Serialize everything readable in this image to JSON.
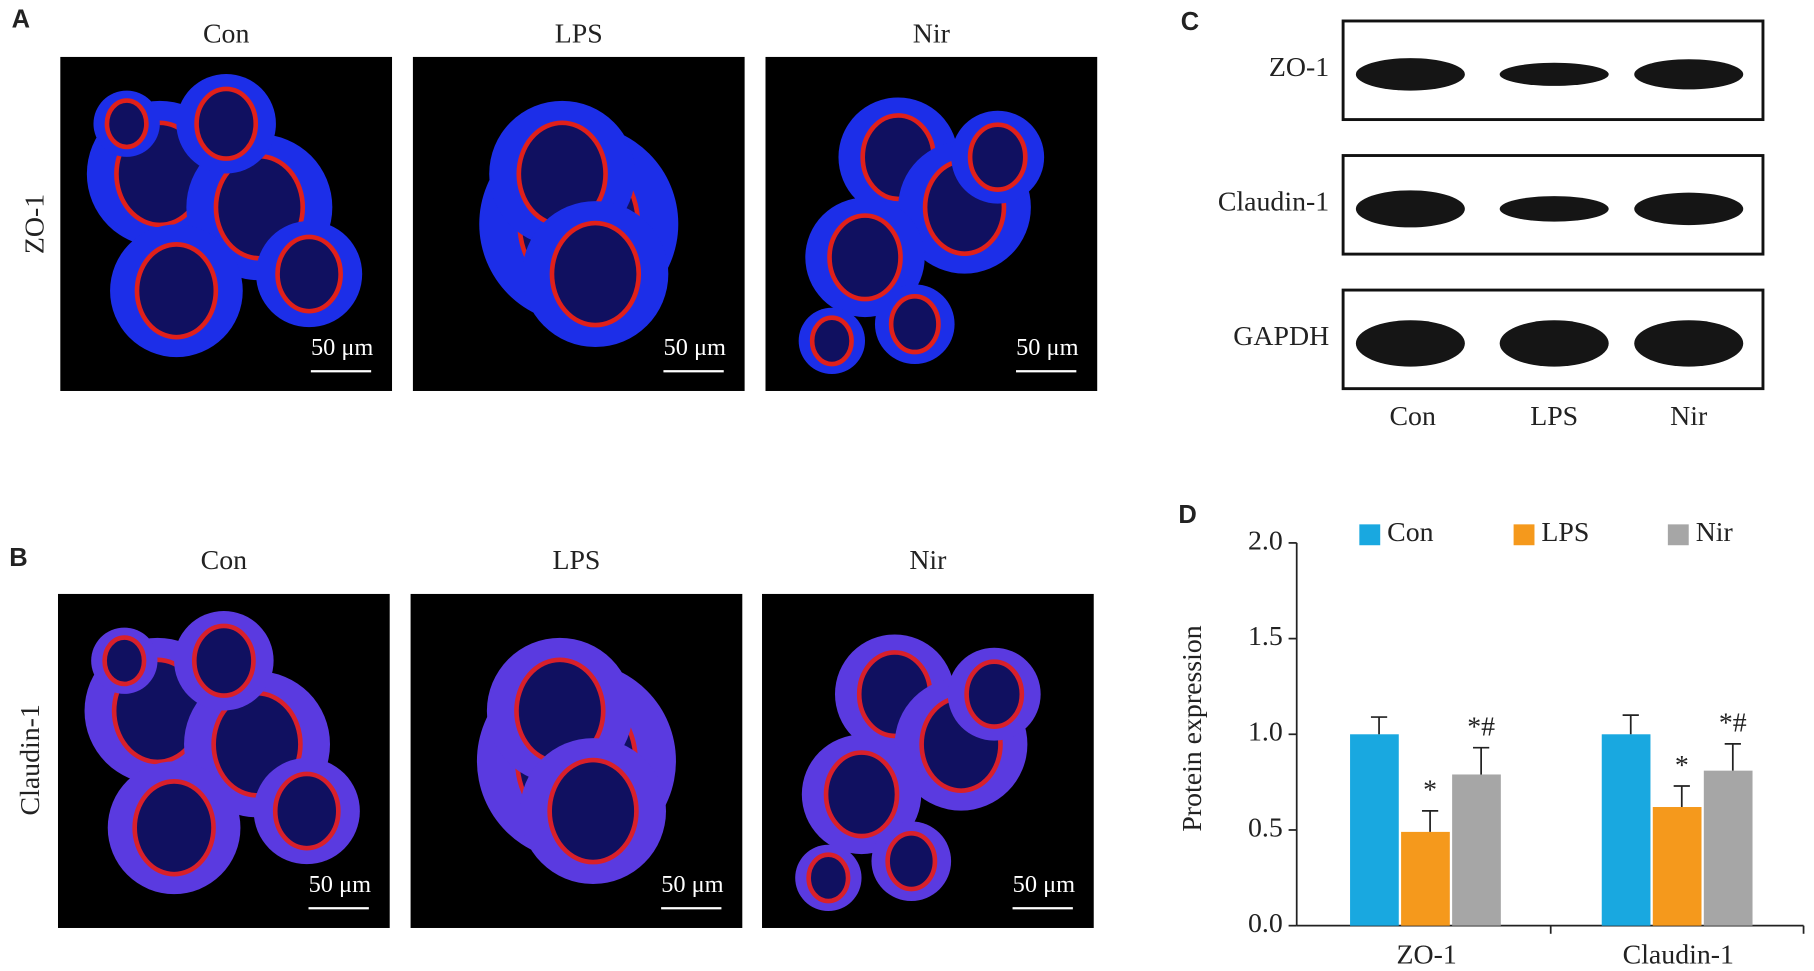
{
  "panel_a": {
    "label": "A",
    "row_label": "ZO-1",
    "columns": [
      "Con",
      "LPS",
      "Nir"
    ],
    "scale_bars": [
      "50 μm",
      "50 μm",
      "50 μm"
    ]
  },
  "panel_b": {
    "label": "B",
    "row_label": "Claudin-1",
    "columns": [
      "Con",
      "LPS",
      "Nir"
    ],
    "scale_bars": [
      "50 μm",
      "50 μm",
      "50 μm"
    ]
  },
  "panel_c": {
    "label": "C",
    "rows": [
      "ZO-1",
      "Claudin-1",
      "GAPDH"
    ],
    "columns": [
      "Con",
      "LPS",
      "Nir"
    ]
  },
  "chart_data": {
    "type": "bar",
    "panel_label": "D",
    "ylabel": "Protein expression",
    "categories": [
      "ZO-1",
      "Claudin-1"
    ],
    "series": [
      {
        "name": "Con",
        "color": "#19a8e0",
        "values": [
          1.0,
          1.0
        ],
        "error": [
          0.09,
          0.1
        ]
      },
      {
        "name": "LPS",
        "color": "#f5991c",
        "values": [
          0.49,
          0.62
        ],
        "error": [
          0.11,
          0.11
        ],
        "annotations": [
          "*",
          "*"
        ]
      },
      {
        "name": "Nir",
        "color": "#a6a6a6",
        "values": [
          0.79,
          0.81
        ],
        "error": [
          0.14,
          0.14
        ],
        "annotations": [
          "*#",
          "*#"
        ]
      }
    ],
    "ylim": [
      0,
      2.0
    ],
    "yticks": [
      {
        "value": 0,
        "label": "0.0"
      },
      0.5,
      {
        "value": 1,
        "label": "1.0"
      },
      1.5,
      {
        "value": 2,
        "label": "2.0"
      }
    ]
  }
}
